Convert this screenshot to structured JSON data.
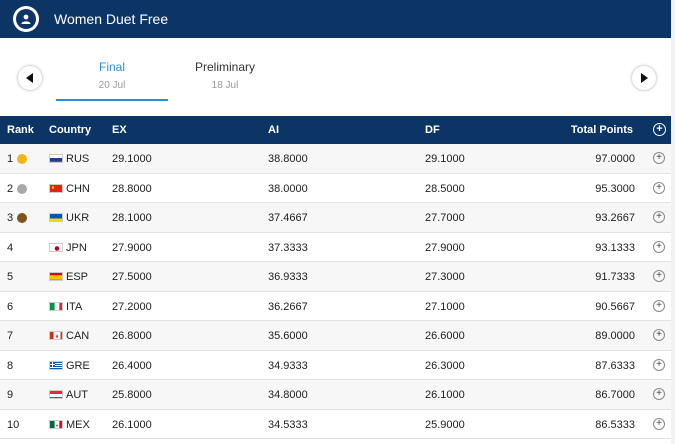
{
  "header": {
    "title": "Women Duet Free",
    "icon": "user-icon"
  },
  "tabs": [
    {
      "label": "Final",
      "date": "20 Jul",
      "active": true
    },
    {
      "label": "Preliminary",
      "date": "18 Jul",
      "active": false
    }
  ],
  "table": {
    "columns": {
      "rank": "Rank",
      "country": "Country",
      "ex": "EX",
      "ai": "AI",
      "df": "DF",
      "total": "Total Points"
    },
    "rows": [
      {
        "rank": "1",
        "medal": "#f2b51c",
        "code": "RUS",
        "ex": "29.1000",
        "ai": "38.8000",
        "df": "29.1000",
        "total": "97.0000"
      },
      {
        "rank": "2",
        "medal": "#a9a9a9",
        "code": "CHN",
        "ex": "28.8000",
        "ai": "38.0000",
        "df": "28.5000",
        "total": "95.3000"
      },
      {
        "rank": "3",
        "medal": "#7a5418",
        "code": "UKR",
        "ex": "28.1000",
        "ai": "37.4667",
        "df": "27.7000",
        "total": "93.2667"
      },
      {
        "rank": "4",
        "medal": "",
        "code": "JPN",
        "ex": "27.9000",
        "ai": "37.3333",
        "df": "27.9000",
        "total": "93.1333"
      },
      {
        "rank": "5",
        "medal": "",
        "code": "ESP",
        "ex": "27.5000",
        "ai": "36.9333",
        "df": "27.3000",
        "total": "91.7333"
      },
      {
        "rank": "6",
        "medal": "",
        "code": "ITA",
        "ex": "27.2000",
        "ai": "36.2667",
        "df": "27.1000",
        "total": "90.5667"
      },
      {
        "rank": "7",
        "medal": "",
        "code": "CAN",
        "ex": "26.8000",
        "ai": "35.6000",
        "df": "26.6000",
        "total": "89.0000"
      },
      {
        "rank": "8",
        "medal": "",
        "code": "GRE",
        "ex": "26.4000",
        "ai": "34.9333",
        "df": "26.3000",
        "total": "87.6333"
      },
      {
        "rank": "9",
        "medal": "",
        "code": "AUT",
        "ex": "25.8000",
        "ai": "34.8000",
        "df": "26.1000",
        "total": "86.7000"
      },
      {
        "rank": "10",
        "medal": "",
        "code": "MEX",
        "ex": "26.1000",
        "ai": "34.5333",
        "df": "25.9000",
        "total": "86.5333"
      }
    ]
  },
  "colors": {
    "primary": "#0c3566",
    "accent": "#2a8fd6"
  }
}
